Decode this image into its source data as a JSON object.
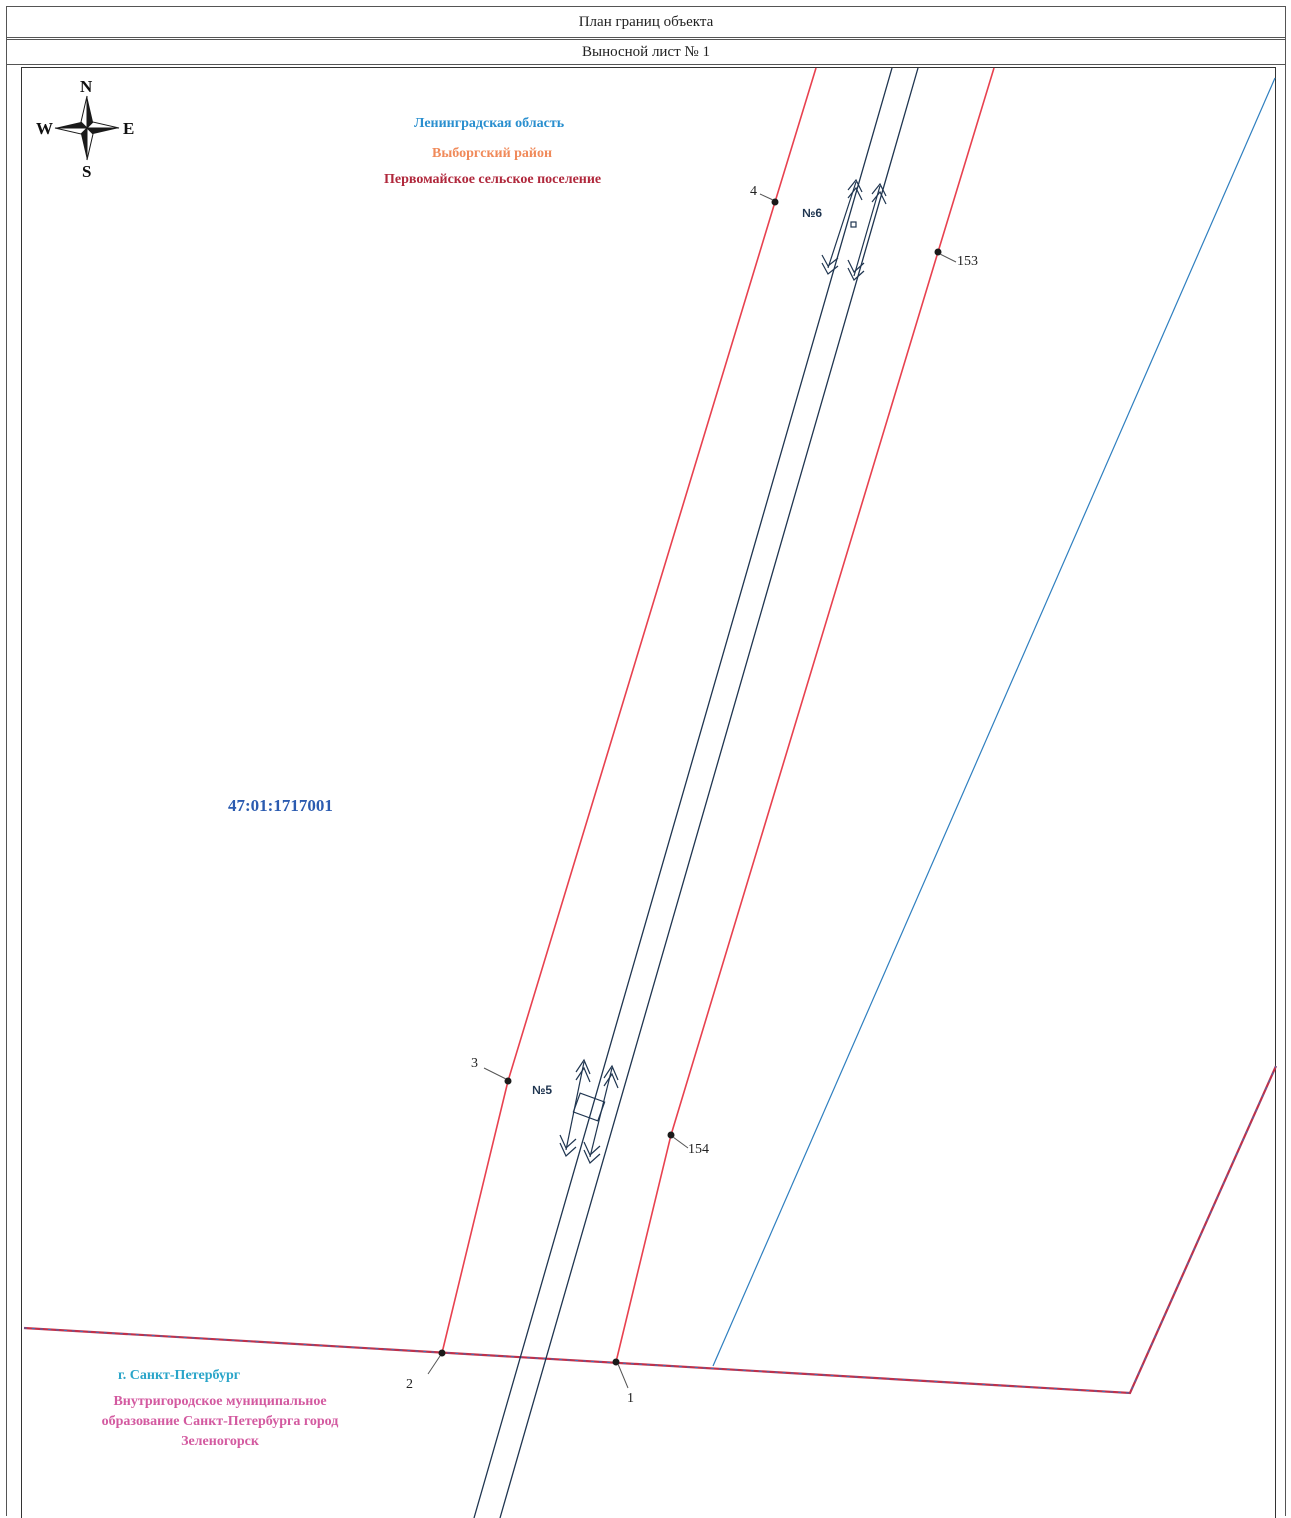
{
  "header": {
    "title": "План границ объекта",
    "subtitle": "Выносной лист № 1"
  },
  "compass": {
    "north": "N",
    "south": "S",
    "west": "W",
    "east": "E"
  },
  "regions": {
    "leningrad_oblast": "Ленинградская область",
    "vyborg_district": "Выборгский район",
    "pervomayskoye": "Первомайское сельское поселение",
    "cadastral_quarter": "47:01:1717001",
    "spb_city": "г. Санкт-Петербург",
    "spb_municipality": "Внутригородское муниципальное образование Санкт-Петербурга город Зеленогорск"
  },
  "points": {
    "p1": "1",
    "p2": "2",
    "p3": "3",
    "p4": "4",
    "p153": "153",
    "p154": "154"
  },
  "objects": {
    "obj5": "№5",
    "obj6": "№6"
  },
  "colors": {
    "boundary": "#e8414f",
    "track": "#1f3550",
    "blue_line": "#2f7fbf",
    "admin": "#c0304a"
  }
}
